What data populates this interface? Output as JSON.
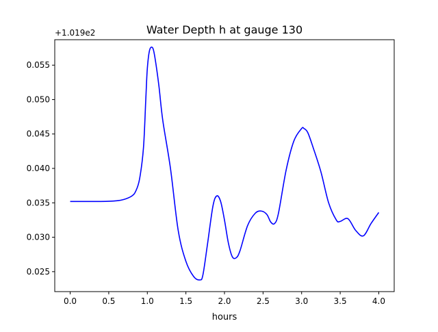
{
  "figure": {
    "offset_text": "+1.019e2"
  },
  "chart_data": {
    "type": "line",
    "title": "Water Depth h at gauge 130",
    "xlabel": "hours",
    "ylabel": "",
    "xlim": [
      -0.2,
      4.2
    ],
    "ylim": [
      0.0221,
      0.0587
    ],
    "xticks": [
      0.0,
      0.5,
      1.0,
      1.5,
      2.0,
      2.5,
      3.0,
      3.5,
      4.0
    ],
    "xtick_labels": [
      "0.0",
      "0.5",
      "1.0",
      "1.5",
      "2.0",
      "2.5",
      "3.0",
      "3.5",
      "4.0"
    ],
    "yticks": [
      0.025,
      0.03,
      0.035,
      0.04,
      0.045,
      0.05,
      0.055
    ],
    "ytick_labels": [
      "0.025",
      "0.030",
      "0.035",
      "0.040",
      "0.045",
      "0.050",
      "0.055"
    ],
    "grid": false,
    "series": [
      {
        "color": "#0000ff",
        "x": [
          0.0,
          0.2,
          0.4,
          0.6,
          0.7,
          0.8,
          0.85,
          0.9,
          0.95,
          0.98,
          1.0,
          1.03,
          1.07,
          1.1,
          1.15,
          1.2,
          1.3,
          1.4,
          1.5,
          1.6,
          1.68,
          1.72,
          1.78,
          1.85,
          1.9,
          1.95,
          2.0,
          2.05,
          2.1,
          2.15,
          2.2,
          2.3,
          2.4,
          2.48,
          2.55,
          2.6,
          2.65,
          2.7,
          2.8,
          2.9,
          3.0,
          3.03,
          3.08,
          3.15,
          3.25,
          3.35,
          3.45,
          3.5,
          3.6,
          3.7,
          3.8,
          3.9,
          4.0
        ],
        "y": [
          0.0352,
          0.0352,
          0.0352,
          0.0353,
          0.0355,
          0.036,
          0.0367,
          0.0385,
          0.043,
          0.05,
          0.0545,
          0.0572,
          0.0575,
          0.056,
          0.052,
          0.047,
          0.04,
          0.031,
          0.0265,
          0.0243,
          0.0238,
          0.0245,
          0.029,
          0.0345,
          0.036,
          0.0352,
          0.0325,
          0.0292,
          0.0272,
          0.027,
          0.028,
          0.0317,
          0.0335,
          0.0338,
          0.0333,
          0.0322,
          0.032,
          0.0335,
          0.0398,
          0.044,
          0.0458,
          0.0458,
          0.0452,
          0.043,
          0.0395,
          0.035,
          0.0325,
          0.0323,
          0.0327,
          0.031,
          0.0302,
          0.032,
          0.0336
        ]
      }
    ]
  }
}
